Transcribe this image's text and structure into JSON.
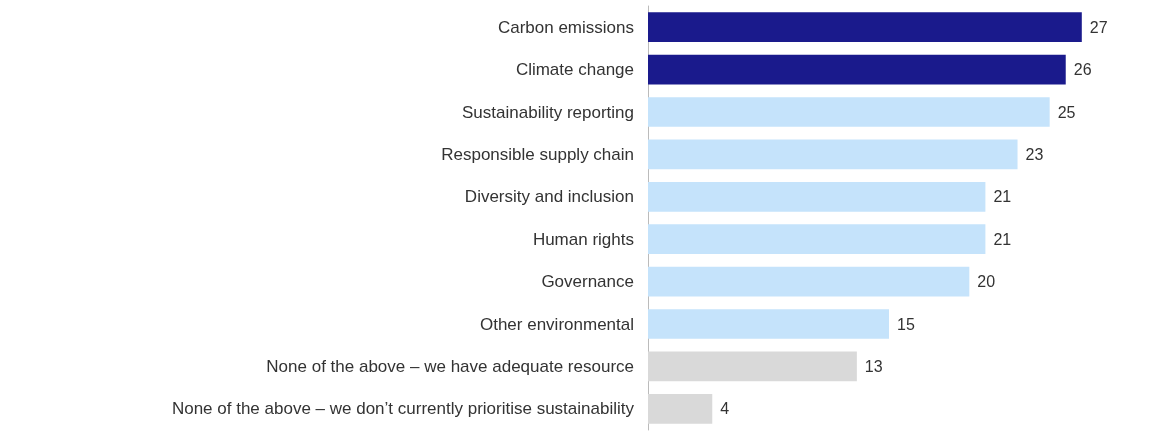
{
  "chart_data": {
    "type": "bar",
    "orientation": "horizontal",
    "categories": [
      "Carbon emissions",
      "Climate change",
      "Sustainability reporting",
      "Responsible supply chain",
      "Diversity and inclusion",
      "Human rights",
      "Governance",
      "Other environmental",
      "None of the above – we have adequate resource",
      "None of the above – we don’t currently prioritise sustainability"
    ],
    "values": [
      27,
      26,
      25,
      23,
      21,
      21,
      20,
      15,
      13,
      4
    ],
    "colors": [
      "#1a1a8c",
      "#1a1a8c",
      "#c5e3fb",
      "#c5e3fb",
      "#c5e3fb",
      "#c5e3fb",
      "#c5e3fb",
      "#c5e3fb",
      "#d9d9d9",
      "#d9d9d9"
    ],
    "data_labels": true
  }
}
